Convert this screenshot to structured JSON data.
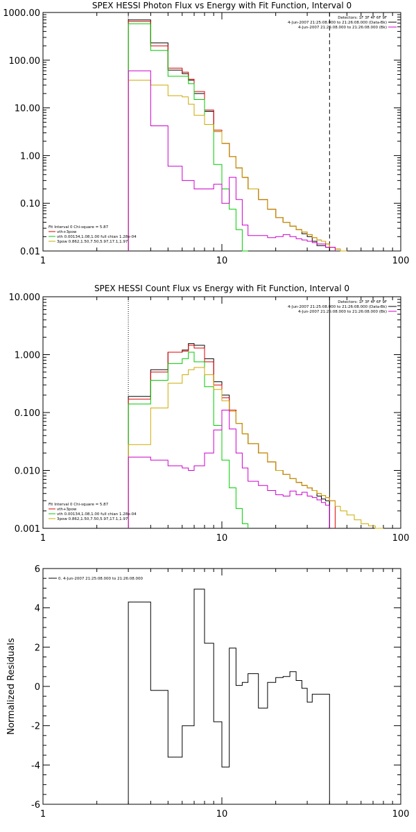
{
  "chart_data": [
    {
      "type": "line",
      "title": "SPEX HESSI Photon Flux vs Energy with Fit Function, Interval 0",
      "xscale": "log",
      "yscale": "log",
      "xlim": [
        1,
        100
      ],
      "ylim": [
        0.01,
        1000
      ],
      "xtick_labels": [
        "1",
        "10",
        "100"
      ],
      "ytick_labels": [
        "0.01",
        "0.10",
        "1.00",
        "10.00",
        "100.00",
        "1000.00"
      ],
      "ytick_values": [
        0.01,
        0.1,
        1,
        10,
        100,
        1000
      ],
      "vlines": [
        {
          "x": 3,
          "style": "dotted"
        },
        {
          "x": 40,
          "style": "dashed"
        }
      ],
      "legend_top": [
        {
          "text": "Detectors: 1F 3F 4F 6F 9F",
          "color": "#000000",
          "line": false
        },
        {
          "text": "4-Jun-2007 21:25:08.000 to 21:26:08.000 (Data-Bk)",
          "color": "#000000",
          "line": true
        },
        {
          "text": "4-Jun-2007 21:25:08.000 to 21:26:08.000 (Bk)",
          "color": "#cc00cc",
          "line": true
        }
      ],
      "legend_bottom": [
        {
          "text": "Fit Interval 0   Chi-square = 5.87",
          "color": "#000000",
          "line": false
        },
        {
          "text": "vth+3pow",
          "color": "#dd0000",
          "line": true
        },
        {
          "text": "vth 0.00134,1.08,1.00  full chian 1.28e-04",
          "color": "#00cc00",
          "line": true
        },
        {
          "text": "3pow 0.862,1.50,7.50,5.97,17.1,1.97",
          "color": "#ccaa00",
          "line": true
        }
      ],
      "edges": [
        3,
        4,
        5,
        6,
        6.5,
        7,
        8,
        9,
        10,
        11,
        12,
        13,
        14,
        16,
        18,
        20,
        22,
        24,
        26,
        28,
        30,
        32,
        34,
        36,
        38,
        40,
        43,
        46,
        50
      ],
      "series": [
        {
          "color": "#000000",
          "values": [
            700,
            230,
            62,
            52,
            38,
            20,
            8.5,
            3.2,
            1.8,
            0.95,
            0.55,
            0.35,
            0.2,
            0.12,
            0.075,
            0.05,
            0.04,
            0.033,
            0.028,
            0.023,
            0.02,
            0.016,
            0.013,
            0.013,
            0.012,
            0.01,
            null,
            null
          ]
        },
        {
          "color": "#dd0000",
          "values": [
            650,
            200,
            68,
            56,
            40,
            22,
            9,
            3.4,
            1.8,
            0.95,
            0.55,
            0.35,
            0.2,
            0.12,
            0.075,
            0.05,
            0.04,
            0.033,
            0.028,
            0.025,
            0.022,
            0.019,
            0.017,
            0.016,
            0.014,
            0.012,
            0.011,
            0.01
          ]
        },
        {
          "color": "#00cc00",
          "values": [
            580,
            160,
            46,
            46,
            32,
            15,
            4.5,
            0.65,
            0.2,
            0.075,
            0.028,
            0.01,
            null,
            null,
            null,
            null,
            null,
            null,
            null,
            null,
            null,
            null,
            null,
            null,
            null,
            null,
            null,
            null
          ]
        },
        {
          "color": "#ccaa00",
          "values": [
            38,
            30,
            18,
            17,
            12,
            7,
            4.5,
            3.2,
            1.8,
            0.95,
            0.55,
            0.35,
            0.2,
            0.12,
            0.075,
            0.05,
            0.04,
            0.033,
            0.028,
            0.025,
            0.022,
            0.019,
            0.017,
            0.016,
            0.014,
            0.012,
            0.011,
            0.01
          ]
        },
        {
          "color": "#cc00cc",
          "values": [
            60,
            4.2,
            0.6,
            0.3,
            0.3,
            0.2,
            0.2,
            0.25,
            0.1,
            0.35,
            0.12,
            0.035,
            0.021,
            0.021,
            0.019,
            0.02,
            0.022,
            0.02,
            0.018,
            0.017,
            0.016,
            0.015,
            0.014,
            0.014,
            0.012,
            0.012,
            null,
            null
          ]
        }
      ]
    },
    {
      "type": "line",
      "title": "SPEX HESSI Count Flux vs Energy with Fit Function, Interval 0",
      "xscale": "log",
      "yscale": "log",
      "xlim": [
        1,
        100
      ],
      "ylim": [
        0.001,
        10
      ],
      "xtick_labels": [
        "1",
        "10",
        "100"
      ],
      "ytick_labels": [
        "0.001",
        "0.010",
        "0.100",
        "1.000",
        "10.000"
      ],
      "ytick_values": [
        0.001,
        0.01,
        0.1,
        1,
        10
      ],
      "vlines": [
        {
          "x": 3,
          "style": "dotted"
        },
        {
          "x": 40,
          "style": "solid"
        }
      ],
      "legend_top": [
        {
          "text": "Detectors: 1F 3F 4F 6F 9F",
          "color": "#000000",
          "line": false
        },
        {
          "text": "4-Jun-2007 21:25:08.000 to 21:26:08.000 (Data-Bk)",
          "color": "#000000",
          "line": true
        },
        {
          "text": "4-Jun-2007 21:25:08.000 to 21:26:08.000 (Bk)",
          "color": "#cc00cc",
          "line": true
        }
      ],
      "legend_bottom": [
        {
          "text": "Fit Interval 0   Chi-square = 5.87",
          "color": "#000000",
          "line": false
        },
        {
          "text": "vth+3pow",
          "color": "#dd0000",
          "line": true
        },
        {
          "text": "vth 0.00134,1.08,1.00  full chian 1.28e-04",
          "color": "#00cc00",
          "line": true
        },
        {
          "text": "3pow 0.862,1.50,7.50,5.97,17.1,1.97",
          "color": "#ccaa00",
          "line": true
        }
      ],
      "edges": [
        3,
        4,
        5,
        6,
        6.5,
        7,
        8,
        9,
        10,
        11,
        12,
        13,
        14,
        16,
        18,
        20,
        22,
        24,
        26,
        28,
        30,
        32,
        34,
        36,
        38,
        40,
        43,
        46,
        50,
        55,
        60,
        66,
        72,
        80
      ],
      "series": [
        {
          "color": "#000000",
          "values": [
            0.19,
            0.55,
            1.1,
            1.2,
            1.55,
            1.45,
            0.85,
            0.34,
            0.2,
            0.11,
            0.065,
            0.043,
            0.029,
            0.02,
            0.014,
            0.01,
            0.0085,
            0.0072,
            0.0062,
            0.0055,
            0.005,
            0.0045,
            0.0036,
            0.0032,
            0.003,
            null,
            null,
            null,
            null,
            null,
            null,
            null,
            null
          ]
        },
        {
          "color": "#dd0000",
          "values": [
            0.17,
            0.5,
            1.1,
            1.15,
            1.45,
            1.3,
            0.75,
            0.3,
            0.18,
            0.11,
            0.065,
            0.043,
            0.029,
            0.02,
            0.014,
            0.01,
            0.0085,
            0.0072,
            0.0062,
            0.0055,
            0.005,
            0.0045,
            0.004,
            0.0037,
            0.0034,
            0.003,
            null,
            null,
            null,
            null,
            null,
            null,
            null
          ]
        },
        {
          "color": "#00cc00",
          "values": [
            0.14,
            0.36,
            0.7,
            0.85,
            1.1,
            0.75,
            0.28,
            0.06,
            0.015,
            0.005,
            0.0022,
            0.0012,
            null,
            null,
            null,
            null,
            null,
            null,
            null,
            null,
            null,
            null,
            null,
            null,
            null,
            null,
            null,
            null,
            null,
            null,
            null,
            null,
            null
          ]
        },
        {
          "color": "#ccaa00",
          "values": [
            0.028,
            0.12,
            0.32,
            0.45,
            0.55,
            0.6,
            0.45,
            0.25,
            0.16,
            0.105,
            0.065,
            0.043,
            0.029,
            0.02,
            0.014,
            0.01,
            0.0085,
            0.0072,
            0.0062,
            0.0055,
            0.005,
            0.0045,
            0.004,
            0.0037,
            0.0034,
            0.003,
            0.0024,
            0.002,
            0.0017,
            0.0014,
            0.0012,
            0.0011,
            0.001
          ]
        },
        {
          "color": "#cc00cc",
          "values": [
            0.017,
            0.015,
            0.012,
            0.011,
            0.01,
            0.012,
            0.02,
            0.05,
            0.11,
            0.052,
            0.02,
            0.011,
            0.0065,
            0.0055,
            0.0045,
            0.0038,
            0.0036,
            0.0044,
            0.0038,
            0.0042,
            0.0036,
            0.0034,
            0.0031,
            0.0028,
            0.0025,
            null,
            null,
            null,
            null,
            null,
            null,
            null,
            null
          ]
        }
      ]
    },
    {
      "type": "line",
      "title": "",
      "xscale": "log",
      "yscale": "linear",
      "xlim": [
        1,
        100
      ],
      "ylim": [
        -6,
        6
      ],
      "ylabel": "Normalized Residuals",
      "xtick_labels": [
        "1",
        "10",
        "100"
      ],
      "ytick_labels": [
        "-6",
        "-4",
        "-2",
        "0",
        "2",
        "4",
        "6"
      ],
      "ytick_values": [
        -6,
        -4,
        -2,
        0,
        2,
        4,
        6
      ],
      "legend_top_left": [
        {
          "text": "0.  4-Jun-2007 21:25:08.000 to 21:26:08.000",
          "color": "#000000",
          "line": true
        }
      ],
      "edges": [
        3,
        4,
        5,
        6,
        6.5,
        7,
        8,
        9,
        10,
        11,
        12,
        13,
        14,
        16,
        18,
        20,
        22,
        24,
        26,
        28,
        30,
        32,
        34,
        36,
        38,
        40
      ],
      "series": [
        {
          "color": "#000000",
          "values": [
            4.3,
            -0.2,
            -3.6,
            -2.0,
            -2.0,
            4.95,
            2.2,
            -1.8,
            -4.1,
            1.95,
            0.05,
            0.2,
            0.65,
            -1.1,
            0.2,
            0.45,
            0.5,
            0.75,
            0.3,
            -0.1,
            -0.8,
            -0.4,
            -0.4,
            -0.4,
            -0.4
          ]
        }
      ]
    }
  ]
}
